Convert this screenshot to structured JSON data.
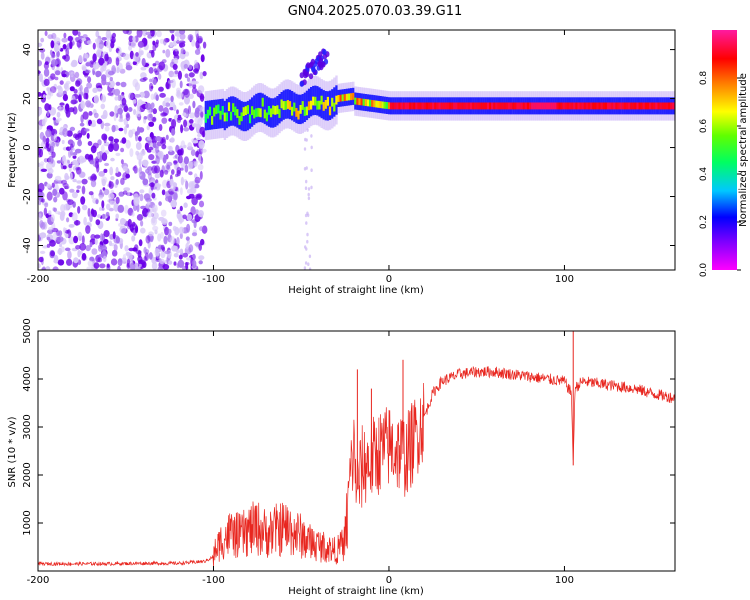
{
  "title": "GN04.2025.070.03.39.G11",
  "chart_data": [
    {
      "type": "heatmap",
      "xlabel": "Height of straight line (km)",
      "ylabel": "Frequency (Hz)",
      "xlim": [
        -200,
        163
      ],
      "ylim": [
        -50,
        48
      ],
      "xticks": [
        -200,
        -100,
        0,
        100
      ],
      "yticks": [
        -40,
        -20,
        0,
        20,
        40
      ],
      "colorbar": {
        "label": "Normalized spectral amplitude",
        "range": [
          0,
          1
        ],
        "ticks": [
          "0.0",
          "0.2",
          "0.4",
          "0.6",
          "0.8"
        ],
        "colormap": "rainbow (magenta-blue-cyan-green-yellow-red-pink)"
      },
      "features": {
        "noise_region_x": [
          -200,
          -105
        ],
        "main_ridge_frequency_hz": 17,
        "ridge_start_frequency_hz": 13,
        "ridge_start_height_km": -105,
        "secondary_branch": {
          "x": [
            -50,
            -35
          ],
          "frequency_hz": [
            28,
            38
          ]
        }
      }
    },
    {
      "type": "line",
      "xlabel": "Height of straight line (km)",
      "ylabel": "SNR (10 * v/v)",
      "xlim": [
        -200,
        163
      ],
      "ylim": [
        0,
        5000
      ],
      "xticks": [
        -200,
        -100,
        0,
        100
      ],
      "yticks": [
        1000,
        2000,
        3000,
        4000,
        5000
      ],
      "series": [
        {
          "color": "#e8261f",
          "x": [
            -200,
            -180,
            -160,
            -140,
            -120,
            -105,
            -100,
            -95,
            -90,
            -85,
            -80,
            -75,
            -70,
            -65,
            -60,
            -55,
            -50,
            -45,
            -40,
            -35,
            -30,
            -25,
            -22,
            -20,
            -18,
            -15,
            -10,
            -5,
            0,
            5,
            10,
            15,
            20,
            25,
            30,
            40,
            50,
            60,
            70,
            80,
            90,
            100,
            104,
            105,
            106,
            110,
            120,
            130,
            140,
            150,
            163
          ],
          "y": [
            150,
            150,
            150,
            160,
            160,
            200,
            300,
            550,
            650,
            600,
            700,
            750,
            650,
            700,
            750,
            700,
            600,
            500,
            450,
            400,
            350,
            500,
            2000,
            2500,
            1700,
            2200,
            2300,
            2500,
            2600,
            2500,
            2400,
            2800,
            3200,
            3700,
            3950,
            4100,
            4150,
            4150,
            4100,
            4050,
            4000,
            3950,
            3700,
            2200,
            3800,
            3950,
            3900,
            3850,
            3800,
            3700,
            3600
          ]
        }
      ],
      "annotations": {
        "spikes": [
          {
            "x": -18,
            "y": 4200
          },
          {
            "x": -10,
            "y": 3800
          },
          {
            "x": 8,
            "y": 4400
          },
          {
            "x": 105,
            "y": 5000
          }
        ]
      }
    }
  ]
}
